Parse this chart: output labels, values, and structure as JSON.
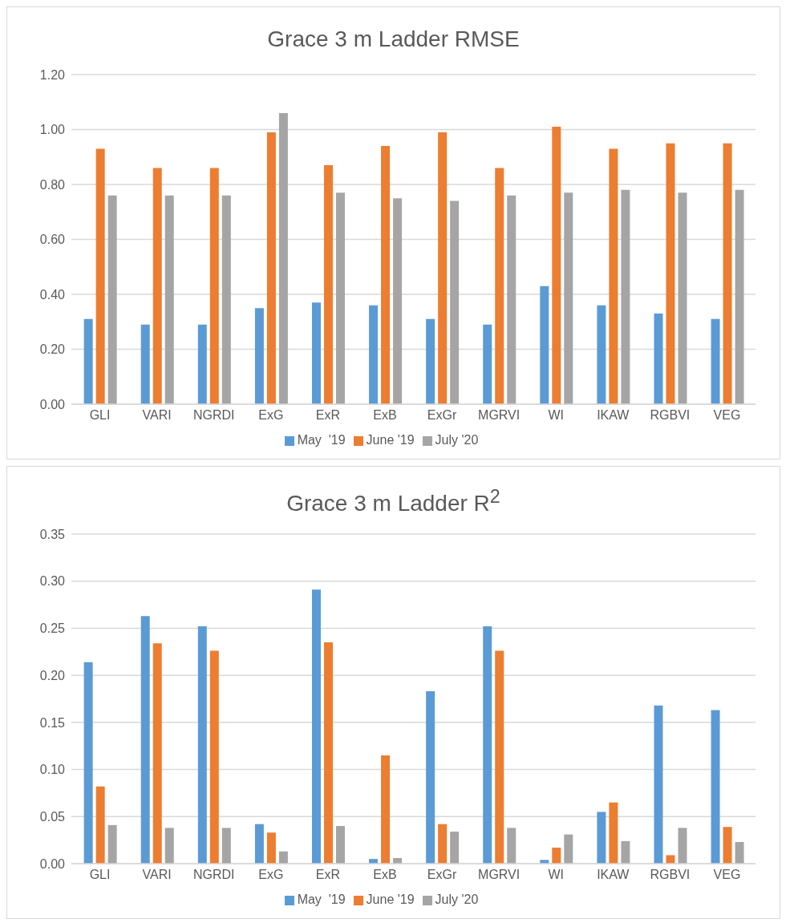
{
  "chart_data": [
    {
      "type": "bar",
      "title": "Grace 3 m Ladder RMSE",
      "categories": [
        "GLI",
        "VARI",
        "NGRDI",
        "ExG",
        "ExR",
        "ExB",
        "ExGr",
        "MGRVI",
        "WI",
        "IKAW",
        "RGBVI",
        "VEG"
      ],
      "series": [
        {
          "name": "May  '19",
          "color": "#5b9bd5",
          "values": [
            0.31,
            0.29,
            0.29,
            0.35,
            0.37,
            0.36,
            0.31,
            0.29,
            0.43,
            0.36,
            0.33,
            0.31
          ]
        },
        {
          "name": "June '19",
          "color": "#ed7d31",
          "values": [
            0.93,
            0.86,
            0.86,
            0.99,
            0.87,
            0.94,
            0.99,
            0.86,
            1.01,
            0.93,
            0.95,
            0.95
          ]
        },
        {
          "name": "July '20",
          "color": "#a5a5a5",
          "values": [
            0.76,
            0.76,
            0.76,
            1.06,
            0.77,
            0.75,
            0.74,
            0.76,
            0.77,
            0.78,
            0.77,
            0.78
          ]
        }
      ],
      "ylim": [
        0,
        1.2
      ],
      "yticks": [
        {
          "value": 0,
          "label": "0.00"
        },
        {
          "value": 0.2,
          "label": "0.20"
        },
        {
          "value": 0.4,
          "label": "0.40"
        },
        {
          "value": 0.6,
          "label": "0.60"
        },
        {
          "value": 0.8,
          "label": "0.80"
        },
        {
          "value": 1,
          "label": "1.00"
        },
        {
          "value": 1.2,
          "label": "1.20"
        }
      ],
      "grid": "y",
      "legend": "bottom"
    },
    {
      "type": "bar",
      "title": "Grace 3 m Ladder R$^{2}$",
      "categories": [
        "GLI",
        "VARI",
        "NGRDI",
        "ExG",
        "ExR",
        "ExB",
        "ExGr",
        "MGRVI",
        "WI",
        "IKAW",
        "RGBVI",
        "VEG"
      ],
      "series": [
        {
          "name": "May  '19",
          "color": "#5b9bd5",
          "values": [
            0.214,
            0.263,
            0.252,
            0.042,
            0.291,
            0.005,
            0.183,
            0.252,
            0.004,
            0.055,
            0.168,
            0.163
          ]
        },
        {
          "name": "June '19",
          "color": "#ed7d31",
          "values": [
            0.082,
            0.234,
            0.226,
            0.033,
            0.235,
            0.115,
            0.042,
            0.226,
            0.017,
            0.065,
            0.009,
            0.039
          ]
        },
        {
          "name": "July '20",
          "color": "#a5a5a5",
          "values": [
            0.041,
            0.038,
            0.038,
            0.013,
            0.04,
            0.006,
            0.034,
            0.038,
            0.031,
            0.024,
            0.038,
            0.023
          ]
        }
      ],
      "ylim": [
        0,
        0.35
      ],
      "yticks": [
        {
          "value": 0,
          "label": "0.00"
        },
        {
          "value": 0.05,
          "label": "0.05"
        },
        {
          "value": 0.1,
          "label": "0.10"
        },
        {
          "value": 0.15,
          "label": "0.15"
        },
        {
          "value": 0.2,
          "label": "0.20"
        },
        {
          "value": 0.25,
          "label": "0.25"
        },
        {
          "value": 0.3,
          "label": "0.30"
        },
        {
          "value": 0.35,
          "label": "0.35"
        }
      ],
      "grid": "y",
      "legend": "bottom"
    }
  ]
}
